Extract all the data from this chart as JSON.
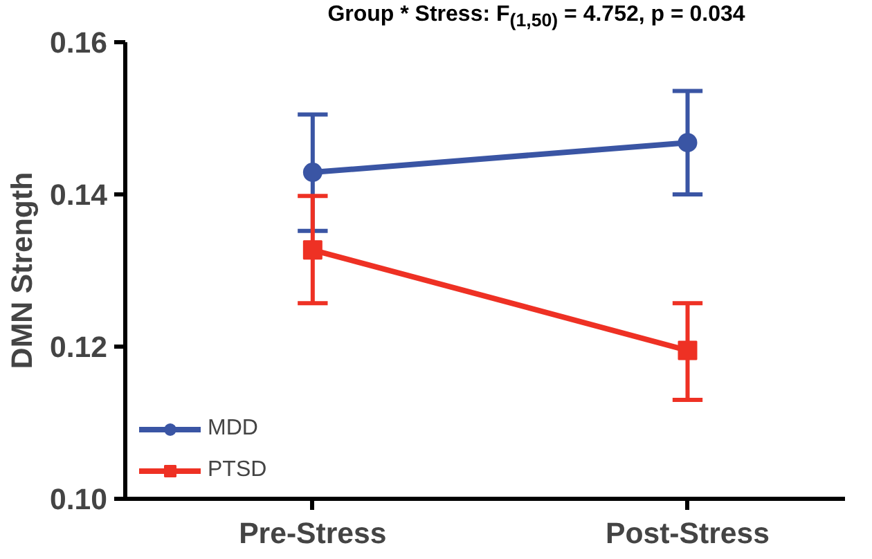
{
  "chart_data": {
    "type": "line",
    "ylabel": "DMN Strength",
    "annotations": [
      "Group * Stress: F$_{(1,50)}$ = 4.752, p = 0.034"
    ],
    "categories": [
      "Pre-Stress",
      "Post-Stress"
    ],
    "series": [
      {
        "name": "MDD",
        "color": "#3a55a4",
        "values": [
          0.1429,
          0.1468
        ],
        "errors": [
          [
            0.1352,
            0.1505
          ],
          [
            0.14,
            0.1536
          ]
        ],
        "marker": "circle"
      },
      {
        "name": "PTSD",
        "color": "#ee3124",
        "values": [
          0.1327,
          0.1195
        ],
        "errors": [
          [
            0.1257,
            0.1398
          ],
          [
            0.113,
            0.1257
          ]
        ],
        "marker": "square"
      }
    ],
    "ylim": [
      0.1,
      0.16
    ],
    "yticks": [
      {
        "value": 0.1,
        "label": "0.10"
      },
      {
        "value": 0.12,
        "label": "0.12"
      },
      {
        "value": 0.14,
        "label": "0.14"
      },
      {
        "value": 0.16,
        "label": "0.16"
      }
    ],
    "grid": false,
    "legend": "bottom left",
    "line_style": "solid"
  }
}
